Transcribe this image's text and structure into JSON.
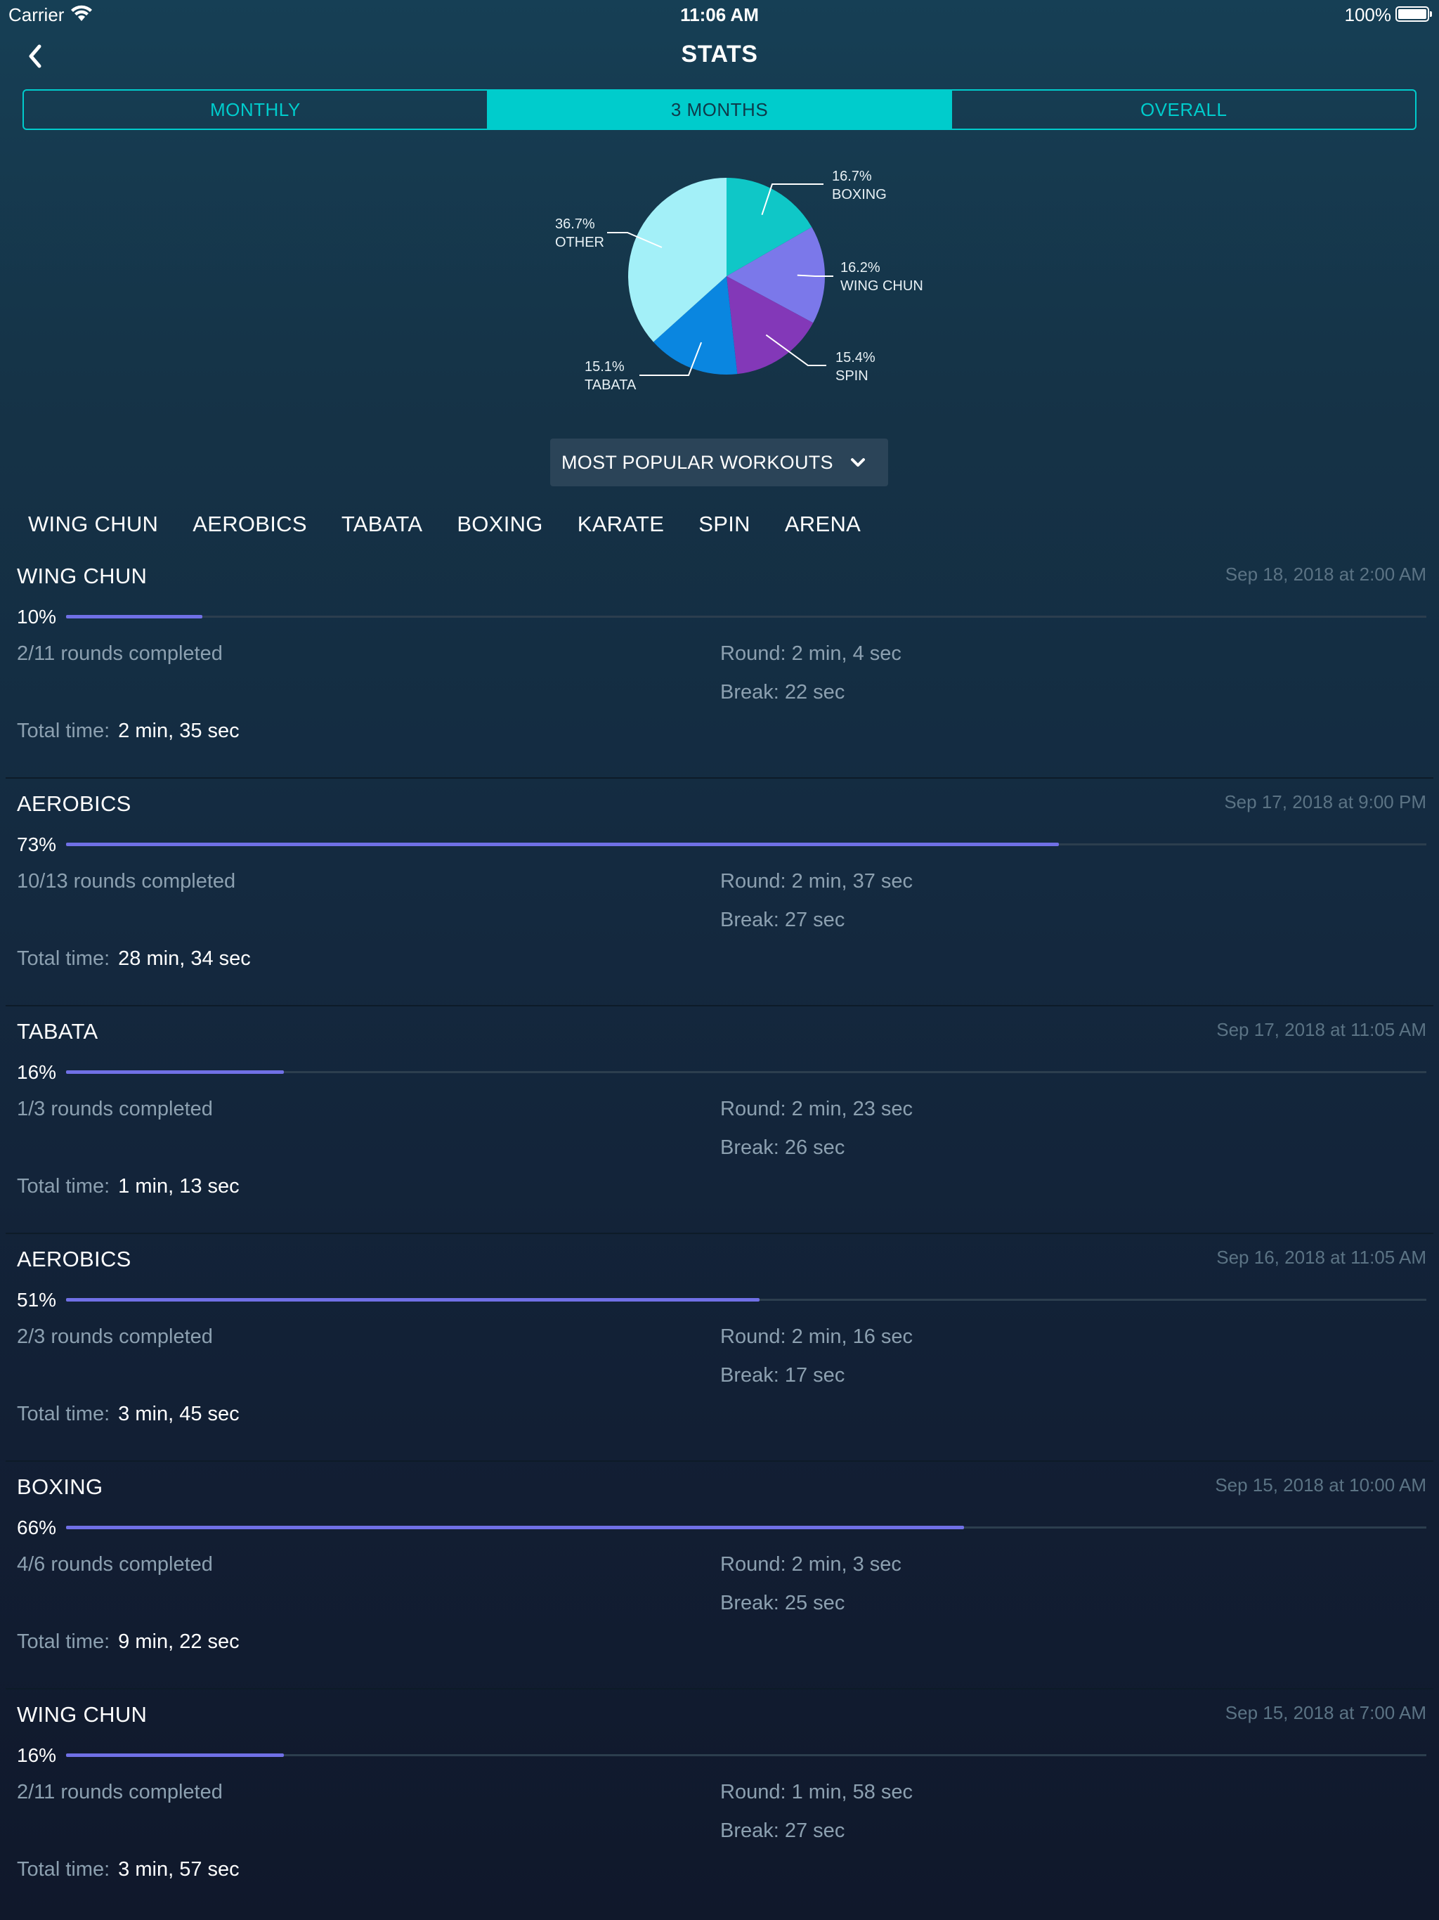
{
  "status_bar": {
    "carrier": "Carrier",
    "time": "11:06 AM",
    "battery": "100%"
  },
  "nav": {
    "title": "STATS"
  },
  "segments": [
    {
      "label": "MONTHLY",
      "active": false
    },
    {
      "label": "3 MONTHS",
      "active": true
    },
    {
      "label": "OVERALL",
      "active": false
    }
  ],
  "chart_data": {
    "type": "pie",
    "slices": [
      {
        "label": "BOXING",
        "percent_label": "16.7%",
        "value": 16.7,
        "color": "#0fc7c7"
      },
      {
        "label": "WING CHUN",
        "percent_label": "16.2%",
        "value": 16.2,
        "color": "#7b78ea"
      },
      {
        "label": "SPIN",
        "percent_label": "15.4%",
        "value": 15.4,
        "color": "#8338b8"
      },
      {
        "label": "TABATA",
        "percent_label": "15.1%",
        "value": 15.1,
        "color": "#0a86e0"
      },
      {
        "label": "OTHER",
        "percent_label": "36.7%",
        "value": 36.7,
        "color": "#a3f0f8"
      }
    ]
  },
  "dropdown": {
    "label": "MOST POPULAR WORKOUTS"
  },
  "workout_tabs": [
    "WING CHUN",
    "AEROBICS",
    "TABATA",
    "BOXING",
    "KARATE",
    "SPIN",
    "ARENA"
  ],
  "total_time_label": "Total time:",
  "entries": [
    {
      "name": "WING CHUN",
      "date": "Sep 18, 2018 at 2:00 AM",
      "percent": "10%",
      "progress": 0.1,
      "rounds": "2/11 rounds completed",
      "round": "Round: 2 min, 4 sec",
      "break": "Break: 22 sec",
      "total": "2 min, 35 sec"
    },
    {
      "name": "AEROBICS",
      "date": "Sep 17, 2018 at 9:00 PM",
      "percent": "73%",
      "progress": 0.73,
      "rounds": "10/13 rounds completed",
      "round": "Round: 2 min, 37 sec",
      "break": "Break: 27 sec",
      "total": "28 min, 34 sec"
    },
    {
      "name": "TABATA",
      "date": "Sep 17, 2018 at 11:05 AM",
      "percent": "16%",
      "progress": 0.16,
      "rounds": "1/3 rounds completed",
      "round": "Round: 2 min, 23 sec",
      "break": "Break: 26 sec",
      "total": "1 min, 13 sec"
    },
    {
      "name": "AEROBICS",
      "date": "Sep 16, 2018 at 11:05 AM",
      "percent": "51%",
      "progress": 0.51,
      "rounds": "2/3 rounds completed",
      "round": "Round: 2 min, 16 sec",
      "break": "Break: 17 sec",
      "total": "3 min, 45 sec"
    },
    {
      "name": "BOXING",
      "date": "Sep 15, 2018 at 10:00 AM",
      "percent": "66%",
      "progress": 0.66,
      "rounds": "4/6 rounds completed",
      "round": "Round: 2 min, 3 sec",
      "break": "Break: 25 sec",
      "total": "9 min, 22 sec"
    },
    {
      "name": "WING CHUN",
      "date": "Sep 15, 2018 at 7:00 AM",
      "percent": "16%",
      "progress": 0.16,
      "rounds": "2/11 rounds completed",
      "round": "Round: 1 min, 58 sec",
      "break": "Break: 27 sec",
      "total": "3 min, 57 sec"
    }
  ]
}
